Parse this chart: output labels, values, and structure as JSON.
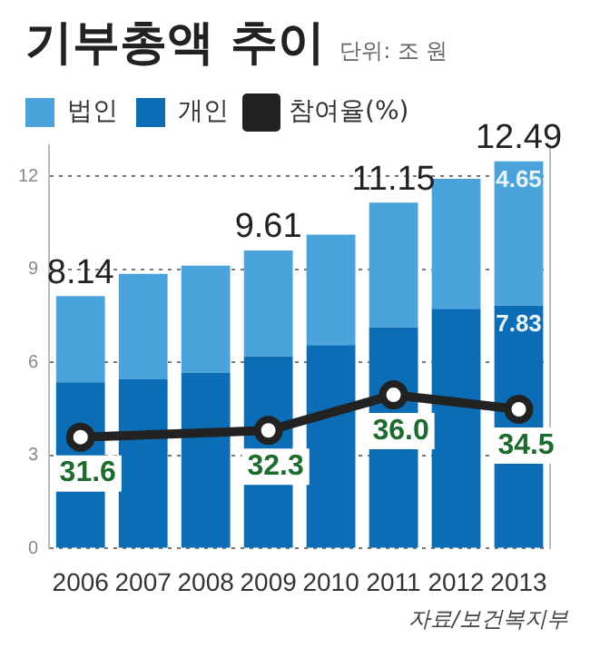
{
  "chart_data": {
    "type": "bar",
    "title": "기부총액 추이",
    "subtitle": "단위: 조 원",
    "categories": [
      "2006",
      "2007",
      "2008",
      "2009",
      "2010",
      "2011",
      "2012",
      "2013"
    ],
    "stacked": true,
    "ylim": [
      0,
      13
    ],
    "yticks": [
      0,
      3,
      6,
      9,
      12
    ],
    "y2lim": [
      20,
      62
    ],
    "grid": "y",
    "legend": "top left",
    "marker": "circle",
    "series": [
      {
        "name": "개인",
        "color": "#0a6db5",
        "values": [
          5.36,
          5.45,
          5.67,
          6.19,
          6.56,
          7.13,
          7.73,
          7.83
        ],
        "value_labels": [
          null,
          null,
          null,
          null,
          null,
          null,
          null,
          "7.83"
        ]
      },
      {
        "name": "법인",
        "color": "#4ba3dc",
        "values": [
          2.78,
          3.4,
          3.45,
          3.42,
          3.56,
          4.02,
          4.19,
          4.65
        ],
        "value_labels": [
          null,
          null,
          null,
          null,
          null,
          null,
          null,
          "4.65"
        ]
      },
      {
        "name": "참여율(%)",
        "type": "line",
        "axis": "y2",
        "color": "#222222",
        "values": [
          31.6,
          null,
          null,
          32.3,
          null,
          36.0,
          null,
          34.5
        ],
        "value_labels": [
          "31.6",
          null,
          null,
          "32.3",
          null,
          "36.0",
          null,
          "34.5"
        ]
      }
    ],
    "totals": [
      "8.14",
      null,
      null,
      "9.61",
      null,
      "11.15",
      null,
      "12.49"
    ],
    "annotations": [
      "자료/보건복지부"
    ]
  }
}
